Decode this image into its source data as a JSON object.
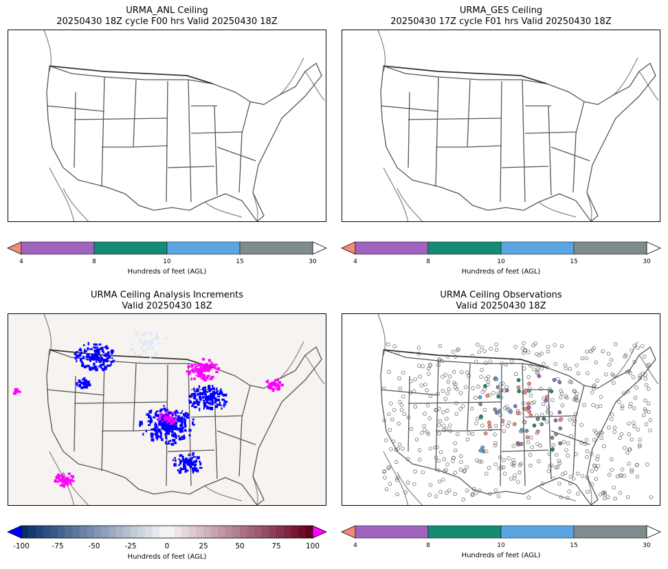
{
  "panels": {
    "anl": {
      "title_line1": "URMA_ANL Ceiling",
      "title_line2": "20250430 18Z cycle F00 hrs Valid 20250430 18Z"
    },
    "ges": {
      "title_line1": "URMA_GES Ceiling",
      "title_line2": "20250430 17Z cycle F01 hrs Valid 20250430 18Z"
    },
    "inc": {
      "title_line1": "URMA Ceiling Analysis Increments",
      "title_line2": "Valid 20250430 18Z"
    },
    "obs": {
      "title_line1": "URMA Ceiling Observations",
      "title_line2": "Valid 20250430 18Z"
    }
  },
  "ceiling_colorbar": {
    "label": "Hundreds of feet (AGL)",
    "ticks": [
      "4",
      "8",
      "10",
      "15",
      "30"
    ],
    "colors": [
      "#f28b7a",
      "#a064be",
      "#148c73",
      "#5aa5e1",
      "#7f8c8d",
      "#ffffff"
    ]
  },
  "increment_colorbar": {
    "label": "Hundreds of feet (AGL)",
    "ticks": [
      "-100",
      "-75",
      "-50",
      "-25",
      "0",
      "25",
      "50",
      "75",
      "100"
    ],
    "under_color": "#0000ff",
    "over_color": "#ff00ff"
  },
  "map_colors": {
    "land": "#ffffff",
    "inc_background": "#f7f3f0",
    "borders": "#555555"
  }
}
